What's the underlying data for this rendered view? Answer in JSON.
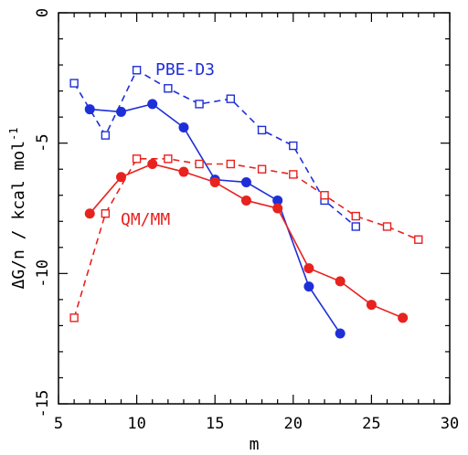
{
  "chart_data": {
    "type": "line",
    "xlabel": "m",
    "ylabel": "ΔG/n / kcal mol",
    "ylabel_superscript": "-1",
    "xlim": [
      5,
      30
    ],
    "ylim": [
      -15,
      0
    ],
    "xticks": [
      "5",
      "10",
      "15",
      "20",
      "25",
      "30"
    ],
    "yticks": [
      "0",
      "-5",
      "-10",
      "-15"
    ],
    "xtick_values": [
      5,
      10,
      15,
      20,
      25,
      30
    ],
    "ytick_values": [
      0,
      -5,
      -10,
      -15
    ],
    "grid": false,
    "annotations": [
      {
        "text": "PBE-D3",
        "color": "#1f2fd8"
      },
      {
        "text": "QM/MM",
        "color": "#e8221f"
      }
    ],
    "series": [
      {
        "color": "#1f2fd8",
        "marker": "open-square",
        "line": "dashed",
        "x": [
          6,
          8,
          10,
          12,
          14,
          16,
          18,
          20,
          22,
          24
        ],
        "y": [
          -2.7,
          -4.7,
          -2.2,
          -2.9,
          -3.5,
          -3.3,
          -4.5,
          -5.1,
          -7.2,
          -8.2
        ]
      },
      {
        "color": "#1f2fd8",
        "marker": "filled-circle",
        "line": "solid",
        "x": [
          7,
          9,
          11,
          13,
          15,
          17,
          19,
          21,
          23
        ],
        "y": [
          -3.7,
          -3.8,
          -3.5,
          -4.4,
          -6.4,
          -6.5,
          -7.2,
          -10.5,
          -12.3
        ]
      },
      {
        "color": "#e8221f",
        "marker": "open-square",
        "line": "dashed",
        "x": [
          6,
          8,
          10,
          12,
          14,
          16,
          18,
          20,
          22,
          24,
          26,
          28
        ],
        "y": [
          -11.7,
          -7.7,
          -5.6,
          -5.6,
          -5.8,
          -5.8,
          -6.0,
          -6.2,
          -7.0,
          -7.8,
          -8.2,
          -8.7
        ]
      },
      {
        "color": "#e8221f",
        "marker": "filled-circle",
        "line": "solid",
        "x": [
          7,
          9,
          11,
          13,
          15,
          17,
          19,
          21,
          23,
          25,
          27
        ],
        "y": [
          -7.7,
          -6.3,
          -5.8,
          -6.1,
          -6.5,
          -7.2,
          -7.5,
          -9.8,
          -10.3,
          -11.2,
          -11.7
        ]
      }
    ]
  }
}
